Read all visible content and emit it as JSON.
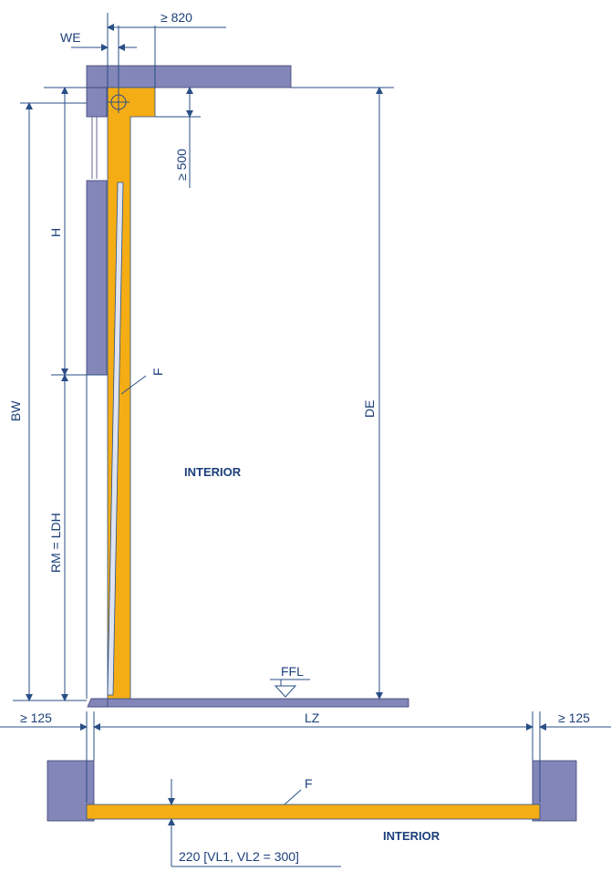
{
  "labels": {
    "we": "WE",
    "min_820": "≥ 820",
    "min_500": "≥ 500",
    "h": "H",
    "bw": "BW",
    "rm_ldh": "RM = LDH",
    "f_section": "F",
    "de": "DE",
    "interior_section": "INTERIOR",
    "ffl": "FFL",
    "min_125_left": "≥ 125",
    "lz": "LZ",
    "min_125_right": "≥ 125",
    "f_plan": "F",
    "interior_plan": "INTERIOR",
    "panel_220": "220 [VL1, VL2 = 300]"
  },
  "colors": {
    "wall": "#8286b8",
    "door": "#f5ad16",
    "dimension": "#2a4f86"
  }
}
